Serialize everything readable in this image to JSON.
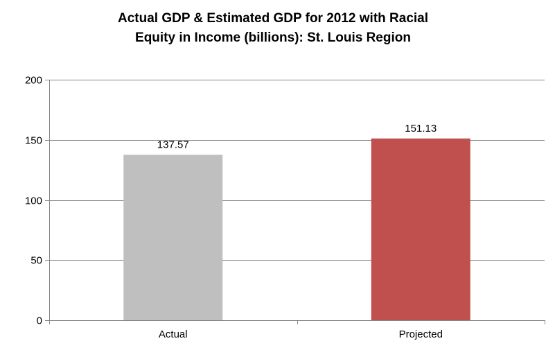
{
  "chart_data": {
    "type": "bar",
    "title_lines": [
      "Actual GDP & Estimated GDP for 2012 with Racial",
      "Equity in Income (billions): St. Louis Region"
    ],
    "categories": [
      "Actual",
      "Projected"
    ],
    "values": [
      137.57,
      151.13
    ],
    "value_labels": [
      "137.57",
      "151.13"
    ],
    "bar_colors": [
      "#bfbfbf",
      "#c0504d"
    ],
    "xlabel": "",
    "ylabel": "",
    "ylim": [
      0,
      200
    ],
    "yticks": [
      0,
      50,
      100,
      150,
      200
    ],
    "ytick_labels": [
      "0",
      "50",
      "100",
      "150",
      "200"
    ],
    "grid": true,
    "legend": "none"
  }
}
